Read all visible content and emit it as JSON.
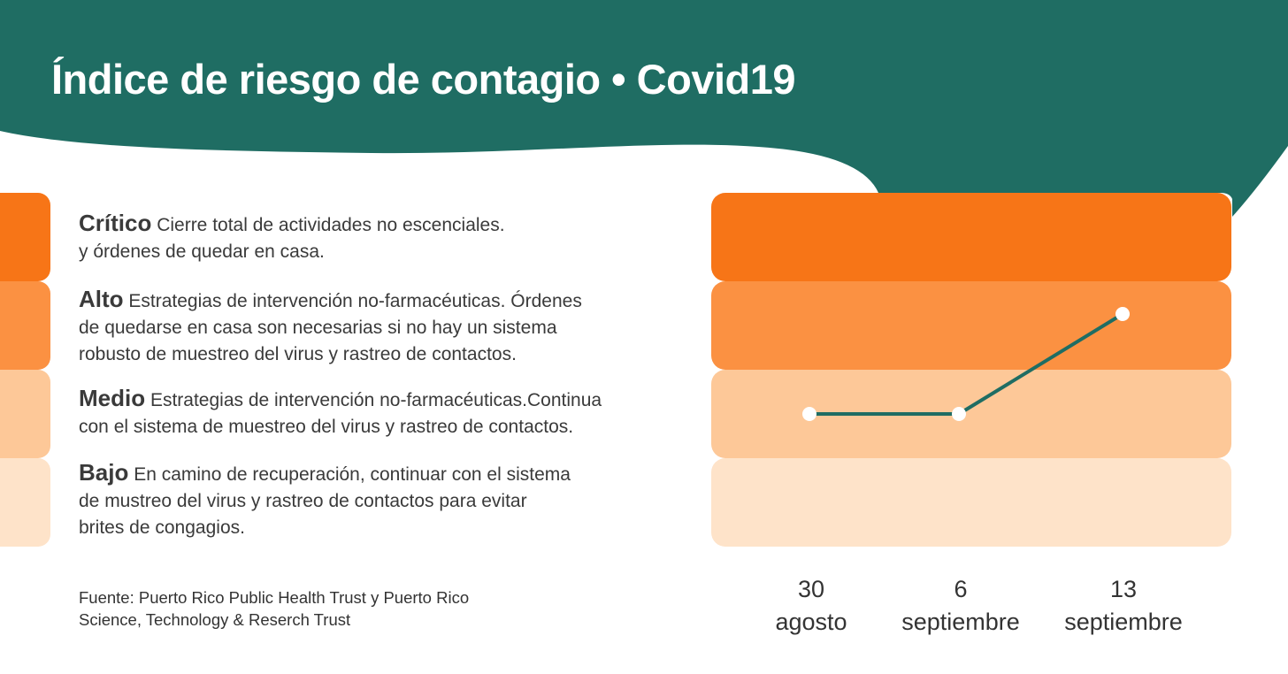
{
  "title": "Índice de riesgo de contagio • Covid19",
  "colors": {
    "header": "#1f6d63",
    "critico": "#f77517",
    "alto": "#fb9142",
    "medio": "#fdc898",
    "bajo": "#fee3c9",
    "line": "#1f6d63",
    "marker": "#ffffff"
  },
  "levels": [
    {
      "name": "Crítico",
      "text": "Cierre total de actividades no escenciales.",
      "text2": "y órdenes de quedar en casa."
    },
    {
      "name": "Alto",
      "text": "Estrategias de intervención no-farmacéuticas. Órdenes",
      "text2": "de quedarse en casa son necesarias si no hay un sistema",
      "text3": "robusto de muestreo del virus y rastreo de contactos."
    },
    {
      "name": "Medio",
      "text": "Estrategias de intervención no-farmacéuticas.Continua",
      "text2": "con el sistema de muestreo del virus y rastreo de contactos."
    },
    {
      "name": "Bajo",
      "text": "En camino de recuperación, continuar con el sistema",
      "text2": "de mustreo del virus y rastreo de contactos para evitar",
      "text3": "brites de congagios."
    }
  ],
  "source": {
    "line1": "Fuente: Puerto Rico Public Health Trust y Puerto Rico",
    "line2": "Science, Technology & Reserch Trust"
  },
  "chart_data": {
    "type": "line",
    "bands": [
      "Crítico",
      "Alto",
      "Medio",
      "Bajo"
    ],
    "x": [
      {
        "day": "30",
        "month": "agosto"
      },
      {
        "day": "6",
        "month": "septiembre"
      },
      {
        "day": "13",
        "month": "septiembre"
      }
    ],
    "series": [
      {
        "levels": [
          "Medio",
          "Medio",
          "Alto"
        ],
        "position_in_band": [
          0.5,
          0.5,
          0.37
        ]
      }
    ]
  }
}
